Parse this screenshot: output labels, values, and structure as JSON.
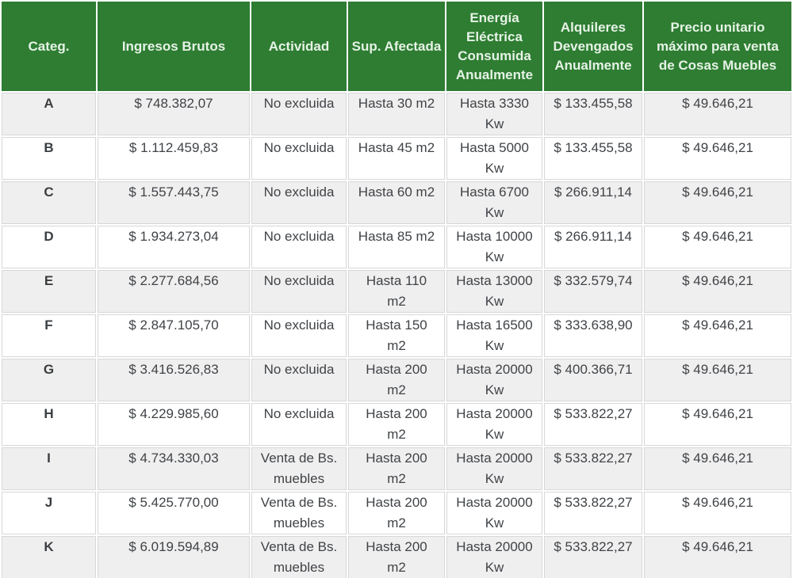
{
  "colors": {
    "header_bg": "#2e7d32",
    "header_text": "#e6f2e6",
    "row_stripe_bg": "#f0efef",
    "row_plain_bg": "#ffffff",
    "cell_border": "#d7d7d7",
    "body_text": "#3f4347"
  },
  "table": {
    "columns": [
      {
        "key": "categ",
        "label": "Categ."
      },
      {
        "key": "ingresos",
        "label": "Ingresos Brutos"
      },
      {
        "key": "actividad",
        "label": "Actividad"
      },
      {
        "key": "sup",
        "label": "Sup. Afectada"
      },
      {
        "key": "energia",
        "label": "Energía Eléctrica Consumida Anualmente"
      },
      {
        "key": "alquileres",
        "label": "Alquileres Devengados Anualmente"
      },
      {
        "key": "precio",
        "label": "Precio unitario máximo para venta de Cosas Muebles"
      }
    ],
    "rows": [
      {
        "categ": "A",
        "ingresos": "$ 748.382,07",
        "actividad": "No excluida",
        "sup": "Hasta 30 m2",
        "energia": "Hasta 3330 Kw",
        "alquileres": "$ 133.455,58",
        "precio": "$ 49.646,21"
      },
      {
        "categ": "B",
        "ingresos": "$ 1.112.459,83",
        "actividad": "No excluida",
        "sup": "Hasta 45 m2",
        "energia": "Hasta 5000 Kw",
        "alquileres": "$ 133.455,58",
        "precio": "$ 49.646,21"
      },
      {
        "categ": "C",
        "ingresos": "$ 1.557.443,75",
        "actividad": "No excluida",
        "sup": "Hasta 60 m2",
        "energia": "Hasta 6700 Kw",
        "alquileres": "$ 266.911,14",
        "precio": "$ 49.646,21"
      },
      {
        "categ": "D",
        "ingresos": "$ 1.934.273,04",
        "actividad": "No excluida",
        "sup": "Hasta 85 m2",
        "energia": "Hasta 10000 Kw",
        "alquileres": "$ 266.911,14",
        "precio": "$ 49.646,21"
      },
      {
        "categ": "E",
        "ingresos": "$ 2.277.684,56",
        "actividad": "No excluida",
        "sup": "Hasta 110 m2",
        "energia": "Hasta 13000 Kw",
        "alquileres": "$ 332.579,74",
        "precio": "$ 49.646,21"
      },
      {
        "categ": "F",
        "ingresos": "$ 2.847.105,70",
        "actividad": "No excluida",
        "sup": "Hasta 150 m2",
        "energia": "Hasta 16500 Kw",
        "alquileres": "$ 333.638,90",
        "precio": "$ 49.646,21"
      },
      {
        "categ": "G",
        "ingresos": "$ 3.416.526,83",
        "actividad": "No excluida",
        "sup": "Hasta 200 m2",
        "energia": "Hasta 20000 Kw",
        "alquileres": "$ 400.366,71",
        "precio": "$ 49.646,21"
      },
      {
        "categ": "H",
        "ingresos": "$ 4.229.985,60",
        "actividad": "No excluida",
        "sup": "Hasta 200 m2",
        "energia": "Hasta 20000 Kw",
        "alquileres": "$ 533.822,27",
        "precio": "$ 49.646,21"
      },
      {
        "categ": "I",
        "ingresos": "$ 4.734.330,03",
        "actividad": "Venta de Bs. muebles",
        "sup": "Hasta 200 m2",
        "energia": "Hasta 20000 Kw",
        "alquileres": "$ 533.822,27",
        "precio": "$ 49.646,21"
      },
      {
        "categ": "J",
        "ingresos": "$ 5.425.770,00",
        "actividad": "Venta de Bs. muebles",
        "sup": "Hasta 200 m2",
        "energia": "Hasta 20000 Kw",
        "alquileres": "$ 533.822,27",
        "precio": "$ 49.646,21"
      },
      {
        "categ": "K",
        "ingresos": "$ 6.019.594,89",
        "actividad": "Venta de Bs. muebles",
        "sup": "Hasta 200 m2",
        "energia": "Hasta 20000 Kw",
        "alquileres": "$ 533.822,27",
        "precio": "$ 49.646,21"
      }
    ]
  }
}
